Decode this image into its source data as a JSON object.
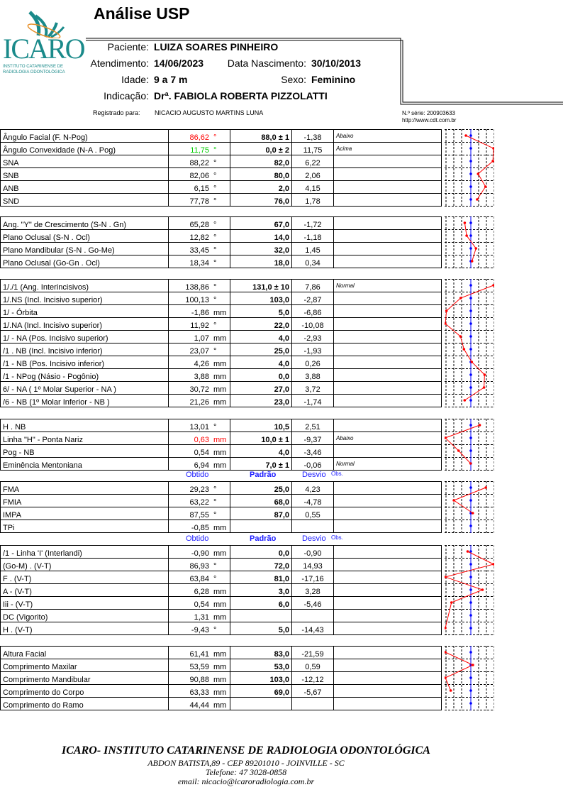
{
  "title": "Análise USP",
  "logo": {
    "text": "ICARO",
    "subtitle1": "INSTITUTO CATARINENSE DE",
    "subtitle2": "RADIOLOGIA ODONTOLÓGICA",
    "color": "#1a8a8a"
  },
  "patient": {
    "paciente_label": "Paciente:",
    "paciente": "LUIZA SOARES PINHEIRO",
    "atendimento_label": "Atendimento:",
    "atendimento": "14/06/2023",
    "nascimento_label": "Data Nascimento:",
    "nascimento": "30/10/2013",
    "idade_label": "Idade:",
    "idade": "9 a 7 m",
    "sexo_label": "Sexo:",
    "sexo": "Feminino",
    "indicacao_label": "Indicação:",
    "indicacao": "Drª. FABIOLA ROBERTA PIZZOLATTI",
    "registrado_label": "Registrado para:",
    "registrado": "NICACIO AUGUSTO MARTINS LUNA",
    "serie": "N.º série: 200903633",
    "site": "http://www.cdt.com.br"
  },
  "column_headers": {
    "obtido": "Obtido",
    "padrao": "Padrão",
    "desvio": "Desvio",
    "obs": "Obs."
  },
  "colors": {
    "red": "#ff0000",
    "green": "#00cc00",
    "blue": "#0000ff"
  },
  "sections": [
    {
      "rows": [
        {
          "label": "Ângulo Facial  (F. N-Pog)",
          "obtido": "86,62",
          "unit": "°",
          "padrao": "88,0 ± 1",
          "desvio": "-1,38",
          "obs": "Abaixo",
          "color": "red"
        },
        {
          "label": "Ângulo Convexidade  (N-A . Pog)",
          "obtido": "11,75",
          "unit": "°",
          "padrao": "0,0 ± 2",
          "desvio": "11,75",
          "obs": "Acima",
          "color": "green"
        },
        {
          "label": "SNA",
          "obtido": "88,22",
          "unit": "°",
          "padrao": "82,0",
          "desvio": "6,22",
          "obs": ""
        },
        {
          "label": "SNB",
          "obtido": "82,06",
          "unit": "°",
          "padrao": "80,0",
          "desvio": "2,06",
          "obs": ""
        },
        {
          "label": "ANB",
          "obtido": "6,15",
          "unit": "°",
          "padrao": "2,0",
          "desvio": "4,15",
          "obs": ""
        },
        {
          "label": "SND",
          "obtido": "77,78",
          "unit": "°",
          "padrao": "76,0",
          "desvio": "1,78",
          "obs": ""
        }
      ]
    },
    {
      "rows": [
        {
          "label": "Ang. \"Y\" de Crescimento  (S-N .  Gn)",
          "obtido": "65,28",
          "unit": "°",
          "padrao": "67,0",
          "desvio": "-1,72",
          "obs": ""
        },
        {
          "label": "Plano Oclusal  (S-N . Ocl)",
          "obtido": "12,82",
          "unit": "°",
          "padrao": "14,0",
          "desvio": "-1,18",
          "obs": ""
        },
        {
          "label": "Plano Mandibular  (S-N . Go-Me)",
          "obtido": "33,45",
          "unit": "°",
          "padrao": "32,0",
          "desvio": "1,45",
          "obs": ""
        },
        {
          "label": "Plano Oclusal  (Go-Gn . Ocl)",
          "obtido": "18,34",
          "unit": "°",
          "padrao": "18,0",
          "desvio": "0,34",
          "obs": ""
        }
      ]
    },
    {
      "rows": [
        {
          "label": "1/./1 (Ang. Interincisivos)",
          "obtido": "138,86",
          "unit": "°",
          "padrao": "131,0 ± 10",
          "desvio": "7,86",
          "obs": "Normal"
        },
        {
          "label": "1/.NS (Incl. Incisivo superior)",
          "obtido": "100,13",
          "unit": "°",
          "padrao": "103,0",
          "desvio": "-2,87",
          "obs": ""
        },
        {
          "label": "1/ - Órbita",
          "obtido": "-1,86",
          "unit": "mm",
          "padrao": "5,0",
          "desvio": "-6,86",
          "obs": ""
        },
        {
          "label": "1/.NA (Incl. Incisivo superior)",
          "obtido": "11,92",
          "unit": "°",
          "padrao": "22,0",
          "desvio": "-10,08",
          "obs": ""
        },
        {
          "label": "1/ - NA (Pos. Incisivo superior)",
          "obtido": "1,07",
          "unit": "mm",
          "padrao": "4,0",
          "desvio": "-2,93",
          "obs": ""
        },
        {
          "label": "/1 . NB (Incl. Incisivo inferior)",
          "obtido": "23,07",
          "unit": "°",
          "padrao": "25,0",
          "desvio": "-1,93",
          "obs": ""
        },
        {
          "label": "/1 - NB (Pos. Incisivo inferior)",
          "obtido": "4,26",
          "unit": "mm",
          "padrao": "4,0",
          "desvio": "0,26",
          "obs": ""
        },
        {
          "label": "/1 - NPog (Násio - Pogônio)",
          "obtido": "3,88",
          "unit": "mm",
          "padrao": "0,0",
          "desvio": "3,88",
          "obs": ""
        },
        {
          "label": "6/ - NA ( 1º Molar Superior - NA )",
          "obtido": "30,72",
          "unit": "mm",
          "padrao": "27,0",
          "desvio": "3,72",
          "obs": ""
        },
        {
          "label": "/6 - NB (1º Molar Inferior - NB )",
          "obtido": "21,26",
          "unit": "mm",
          "padrao": "23,0",
          "desvio": "-1,74",
          "obs": ""
        }
      ]
    },
    {
      "rows": [
        {
          "label": "H . NB",
          "obtido": "13,01",
          "unit": "°",
          "padrao": "10,5",
          "desvio": "2,51",
          "obs": ""
        },
        {
          "label": "Linha \"H\" - Ponta Nariz",
          "obtido": "0,63",
          "unit": "mm",
          "padrao": "10,0 ± 1",
          "desvio": "-9,37",
          "obs": "Abaixo",
          "color": "red"
        },
        {
          "label": "Pog - NB",
          "obtido": "0,54",
          "unit": "mm",
          "padrao": "4,0",
          "desvio": "-3,46",
          "obs": ""
        },
        {
          "label": "Eminência Mentoniana",
          "obtido": "6,94",
          "unit": "mm",
          "padrao": "7,0 ± 1",
          "desvio": "-0,06",
          "obs": "Normal"
        }
      ]
    },
    {
      "rows": [
        {
          "label": "FMA",
          "obtido": "29,23",
          "unit": "°",
          "padrao": "25,0",
          "desvio": "4,23",
          "obs": ""
        },
        {
          "label": "FMIA",
          "obtido": "63,22",
          "unit": "°",
          "padrao": "68,0",
          "desvio": "-4,78",
          "obs": ""
        },
        {
          "label": "IMPA",
          "obtido": "87,55",
          "unit": "°",
          "padrao": "87,0",
          "desvio": "0,55",
          "obs": ""
        },
        {
          "label": "TPi",
          "obtido": "-0,85",
          "unit": "mm",
          "padrao": "",
          "desvio": "",
          "obs": ""
        }
      ]
    },
    {
      "rows": [
        {
          "label": "/1 - Linha 'I' (Interlandi)",
          "obtido": "-0,90",
          "unit": "mm",
          "padrao": "0,0",
          "desvio": "-0,90",
          "obs": ""
        },
        {
          "label": "(Go-M) . (V-T)",
          "obtido": "86,93",
          "unit": "°",
          "padrao": "72,0",
          "desvio": "14,93",
          "obs": ""
        },
        {
          "label": "F . (V-T)",
          "obtido": "63,84",
          "unit": "°",
          "padrao": "81,0",
          "desvio": "-17,16",
          "obs": ""
        },
        {
          "label": "A - (V-T)",
          "obtido": "6,28",
          "unit": "mm",
          "padrao": "3,0",
          "desvio": "3,28",
          "obs": ""
        },
        {
          "label": "Iii - (V-T)",
          "obtido": "0,54",
          "unit": "mm",
          "padrao": "6,0",
          "desvio": "-5,46",
          "obs": ""
        },
        {
          "label": "DC (Vigorito)",
          "obtido": "1,31",
          "unit": "mm",
          "padrao": "",
          "desvio": "",
          "obs": ""
        },
        {
          "label": "H . (V-T)",
          "obtido": "-9,43",
          "unit": "°",
          "padrao": "5,0",
          "desvio": "-14,43",
          "obs": ""
        }
      ]
    },
    {
      "rows": [
        {
          "label": "Altura Facial",
          "obtido": "61,41",
          "unit": "mm",
          "padrao": "83,0",
          "desvio": "-21,59",
          "obs": ""
        },
        {
          "label": "Comprimento Maxilar",
          "obtido": "53,59",
          "unit": "mm",
          "padrao": "53,0",
          "desvio": "0,59",
          "obs": ""
        },
        {
          "label": "Comprimento Mandibular",
          "obtido": "90,88",
          "unit": "mm",
          "padrao": "103,0",
          "desvio": "-12,12",
          "obs": ""
        },
        {
          "label": "Comprimento do Corpo",
          "obtido": "63,33",
          "unit": "mm",
          "padrao": "69,0",
          "desvio": "-5,67",
          "obs": ""
        },
        {
          "label": "Comprimento do Ramo",
          "obtido": "44,44",
          "unit": "mm",
          "padrao": "",
          "desvio": "",
          "obs": ""
        }
      ]
    }
  ],
  "footer": {
    "institution": "ICARO- INSTITUTO CATARINENSE DE RADIOLOGIA ODONTOLÓGICA",
    "address": "ABDON BATISTA,89 - CEP 89201010 - JOINVILLE - SC",
    "phone": "Telefone: 47 3028-0858",
    "email": "email: nicacio@icaroradiologia.com.br"
  }
}
